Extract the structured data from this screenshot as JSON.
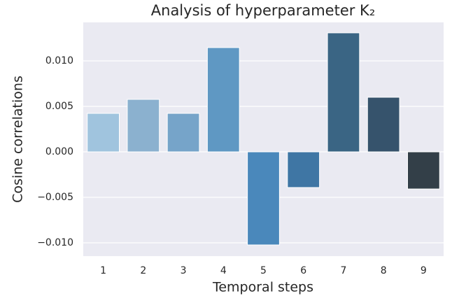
{
  "chart_data": {
    "type": "bar",
    "title": "Analysis of hyperparameter K₂",
    "x_label": "Temporal steps",
    "y_label": "Cosine correlations",
    "categories": [
      "1",
      "2",
      "3",
      "4",
      "5",
      "6",
      "7",
      "8",
      "9"
    ],
    "values": [
      0.00423,
      0.00577,
      0.00423,
      0.01146,
      -0.01023,
      -0.00392,
      0.01308,
      0.006,
      -0.00408
    ],
    "colors": [
      "#a0c4de",
      "#8bb1cf",
      "#76a4c9",
      "#5f98c3",
      "#4a88bb",
      "#3f76a4",
      "#3a6584",
      "#36536c",
      "#333f48"
    ],
    "ylim": [
      -0.01146,
      0.01423
    ],
    "yticks": [
      {
        "value": -0.01,
        "label": "−0.010"
      },
      {
        "value": -0.005,
        "label": "−0.005"
      },
      {
        "value": 0,
        "label": "0.000"
      },
      {
        "value": 0.005,
        "label": "0.005"
      },
      {
        "value": 0.01,
        "label": "0.010"
      }
    ],
    "grid": true
  }
}
